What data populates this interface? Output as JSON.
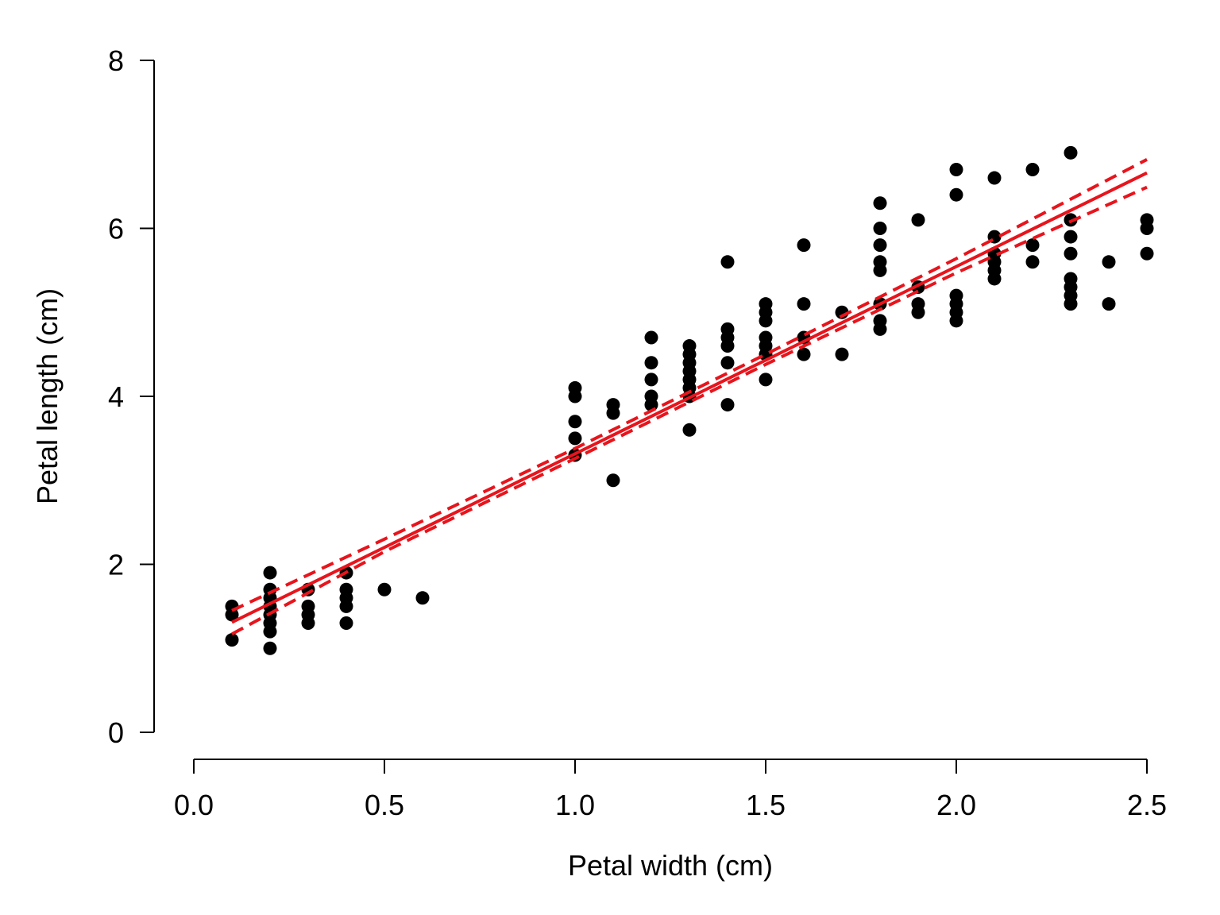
{
  "chart_data": {
    "type": "scatter",
    "title": "",
    "xlabel": "Petal width (cm)",
    "ylabel": "Petal length (cm)",
    "xlim": [
      0.0,
      2.5
    ],
    "ylim": [
      0,
      8
    ],
    "xticks": [
      "0.0",
      "0.5",
      "1.0",
      "1.5",
      "2.0",
      "2.5"
    ],
    "yticks": [
      "0",
      "2",
      "4",
      "6",
      "8"
    ],
    "grid": false,
    "legend": "none",
    "point_color": "#000000",
    "fit_color": "#e8141c",
    "points": [
      [
        0.1,
        1.1
      ],
      [
        0.1,
        1.4
      ],
      [
        0.1,
        1.5
      ],
      [
        0.2,
        1.0
      ],
      [
        0.2,
        1.2
      ],
      [
        0.2,
        1.3
      ],
      [
        0.2,
        1.4
      ],
      [
        0.2,
        1.5
      ],
      [
        0.2,
        1.6
      ],
      [
        0.2,
        1.7
      ],
      [
        0.2,
        1.9
      ],
      [
        0.3,
        1.3
      ],
      [
        0.3,
        1.4
      ],
      [
        0.3,
        1.5
      ],
      [
        0.3,
        1.7
      ],
      [
        0.4,
        1.3
      ],
      [
        0.4,
        1.5
      ],
      [
        0.4,
        1.6
      ],
      [
        0.4,
        1.7
      ],
      [
        0.4,
        1.9
      ],
      [
        0.5,
        1.7
      ],
      [
        0.6,
        1.6
      ],
      [
        1.0,
        3.3
      ],
      [
        1.0,
        3.5
      ],
      [
        1.0,
        3.7
      ],
      [
        1.0,
        4.0
      ],
      [
        1.0,
        4.1
      ],
      [
        1.1,
        3.0
      ],
      [
        1.1,
        3.8
      ],
      [
        1.1,
        3.9
      ],
      [
        1.2,
        3.9
      ],
      [
        1.2,
        4.0
      ],
      [
        1.2,
        4.2
      ],
      [
        1.2,
        4.4
      ],
      [
        1.2,
        4.7
      ],
      [
        1.3,
        3.6
      ],
      [
        1.3,
        4.0
      ],
      [
        1.3,
        4.1
      ],
      [
        1.3,
        4.2
      ],
      [
        1.3,
        4.3
      ],
      [
        1.3,
        4.4
      ],
      [
        1.3,
        4.5
      ],
      [
        1.3,
        4.6
      ],
      [
        1.4,
        3.9
      ],
      [
        1.4,
        4.4
      ],
      [
        1.4,
        4.6
      ],
      [
        1.4,
        4.7
      ],
      [
        1.4,
        4.8
      ],
      [
        1.4,
        5.6
      ],
      [
        1.5,
        4.2
      ],
      [
        1.5,
        4.5
      ],
      [
        1.5,
        4.6
      ],
      [
        1.5,
        4.7
      ],
      [
        1.5,
        4.9
      ],
      [
        1.5,
        5.0
      ],
      [
        1.5,
        5.1
      ],
      [
        1.6,
        4.5
      ],
      [
        1.6,
        4.7
      ],
      [
        1.6,
        5.1
      ],
      [
        1.6,
        5.8
      ],
      [
        1.7,
        4.5
      ],
      [
        1.7,
        5.0
      ],
      [
        1.8,
        4.8
      ],
      [
        1.8,
        4.9
      ],
      [
        1.8,
        5.1
      ],
      [
        1.8,
        5.5
      ],
      [
        1.8,
        5.6
      ],
      [
        1.8,
        5.8
      ],
      [
        1.8,
        6.0
      ],
      [
        1.8,
        6.3
      ],
      [
        1.9,
        5.0
      ],
      [
        1.9,
        5.1
      ],
      [
        1.9,
        5.3
      ],
      [
        1.9,
        6.1
      ],
      [
        2.0,
        4.9
      ],
      [
        2.0,
        5.0
      ],
      [
        2.0,
        5.1
      ],
      [
        2.0,
        5.2
      ],
      [
        2.0,
        6.4
      ],
      [
        2.0,
        6.7
      ],
      [
        2.1,
        5.4
      ],
      [
        2.1,
        5.5
      ],
      [
        2.1,
        5.6
      ],
      [
        2.1,
        5.7
      ],
      [
        2.1,
        5.9
      ],
      [
        2.1,
        6.6
      ],
      [
        2.2,
        5.6
      ],
      [
        2.2,
        5.8
      ],
      [
        2.2,
        6.7
      ],
      [
        2.3,
        5.1
      ],
      [
        2.3,
        5.2
      ],
      [
        2.3,
        5.3
      ],
      [
        2.3,
        5.4
      ],
      [
        2.3,
        5.7
      ],
      [
        2.3,
        5.9
      ],
      [
        2.3,
        6.1
      ],
      [
        2.3,
        6.9
      ],
      [
        2.4,
        5.1
      ],
      [
        2.4,
        5.6
      ],
      [
        2.5,
        5.7
      ],
      [
        2.5,
        6.0
      ],
      [
        2.5,
        6.1
      ]
    ],
    "fit_line": [
      [
        0.1,
        1.31
      ],
      [
        2.5,
        6.66
      ]
    ],
    "ci_upper": [
      [
        0.1,
        1.45
      ],
      [
        0.5,
        2.3
      ],
      [
        1.0,
        3.38
      ],
      [
        1.5,
        4.5
      ],
      [
        2.0,
        5.64
      ],
      [
        2.5,
        6.82
      ]
    ],
    "ci_lower": [
      [
        0.1,
        1.17
      ],
      [
        0.5,
        2.15
      ],
      [
        1.0,
        3.26
      ],
      [
        1.5,
        4.38
      ],
      [
        2.0,
        5.47
      ],
      [
        2.5,
        6.49
      ]
    ]
  }
}
